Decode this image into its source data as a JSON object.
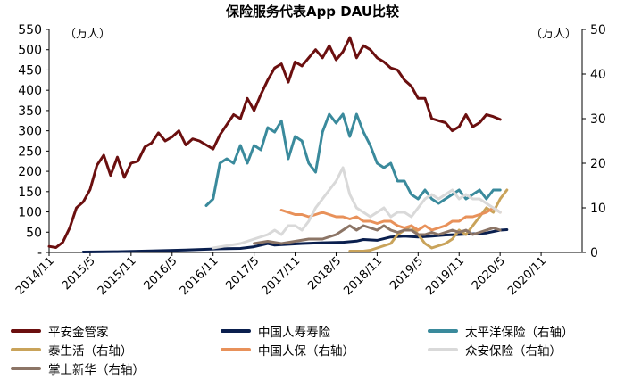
{
  "chart_data": {
    "type": "line",
    "title": "保险服务代表App DAU比较",
    "left_unit": "（万人）",
    "right_unit": "（万人）",
    "ylim_left": [
      0,
      550
    ],
    "ylim_right": [
      0,
      50
    ],
    "yticks_left": [
      "-",
      "50",
      "100",
      "150",
      "200",
      "250",
      "300",
      "350",
      "400",
      "450",
      "500",
      "550"
    ],
    "yticks_right": [
      "0",
      "10",
      "20",
      "30",
      "40",
      "50"
    ],
    "xlim": [
      0,
      78
    ],
    "x_ticks": [
      {
        "label": "2014/11",
        "m": 0
      },
      {
        "label": "2015/5",
        "m": 6
      },
      {
        "label": "2015/11",
        "m": 12
      },
      {
        "label": "2016/5",
        "m": 18
      },
      {
        "label": "2016/11",
        "m": 24
      },
      {
        "label": "2017/5",
        "m": 30
      },
      {
        "label": "2017/11",
        "m": 36
      },
      {
        "label": "2018/5",
        "m": 42
      },
      {
        "label": "2018/11",
        "m": 48
      },
      {
        "label": "2019/5",
        "m": 54
      },
      {
        "label": "2019/11",
        "m": 60
      },
      {
        "label": "2020/5",
        "m": 66
      },
      {
        "label": "2020/11",
        "m": 72
      }
    ],
    "series": [
      {
        "name": "平安金管家",
        "axis": "left",
        "color": "#6B0F0F",
        "points": [
          [
            0,
            15
          ],
          [
            1,
            12
          ],
          [
            2,
            25
          ],
          [
            3,
            60
          ],
          [
            4,
            110
          ],
          [
            5,
            125
          ],
          [
            6,
            155
          ],
          [
            7,
            215
          ],
          [
            8,
            240
          ],
          [
            9,
            190
          ],
          [
            10,
            235
          ],
          [
            11,
            185
          ],
          [
            12,
            220
          ],
          [
            13,
            225
          ],
          [
            14,
            260
          ],
          [
            15,
            270
          ],
          [
            16,
            295
          ],
          [
            17,
            275
          ],
          [
            18,
            285
          ],
          [
            19,
            300
          ],
          [
            20,
            265
          ],
          [
            21,
            280
          ],
          [
            22,
            275
          ],
          [
            23,
            265
          ],
          [
            24,
            255
          ],
          [
            25,
            290
          ],
          [
            26,
            315
          ],
          [
            27,
            340
          ],
          [
            28,
            330
          ],
          [
            29,
            380
          ],
          [
            30,
            350
          ],
          [
            31,
            390
          ],
          [
            32,
            425
          ],
          [
            33,
            455
          ],
          [
            34,
            465
          ],
          [
            35,
            420
          ],
          [
            36,
            470
          ],
          [
            37,
            460
          ],
          [
            38,
            480
          ],
          [
            39,
            500
          ],
          [
            40,
            480
          ],
          [
            41,
            510
          ],
          [
            42,
            475
          ],
          [
            43,
            495
          ],
          [
            44,
            530
          ],
          [
            45,
            480
          ],
          [
            46,
            510
          ],
          [
            47,
            500
          ],
          [
            48,
            480
          ],
          [
            49,
            470
          ],
          [
            50,
            455
          ],
          [
            51,
            450
          ],
          [
            52,
            425
          ],
          [
            53,
            410
          ],
          [
            54,
            380
          ],
          [
            55,
            380
          ],
          [
            56,
            330
          ],
          [
            57,
            325
          ],
          [
            58,
            320
          ],
          [
            59,
            300
          ],
          [
            60,
            310
          ],
          [
            61,
            340
          ],
          [
            62,
            310
          ],
          [
            63,
            320
          ],
          [
            64,
            340
          ],
          [
            65,
            335
          ],
          [
            66,
            328
          ]
        ]
      },
      {
        "name": "中国人寿寿险",
        "axis": "left",
        "color": "#0A1F4E",
        "points": [
          [
            5,
            1
          ],
          [
            10,
            2
          ],
          [
            15,
            4
          ],
          [
            20,
            6
          ],
          [
            25,
            9
          ],
          [
            28,
            10
          ],
          [
            30,
            14
          ],
          [
            32,
            22
          ],
          [
            33,
            18
          ],
          [
            35,
            20
          ],
          [
            37,
            22
          ],
          [
            40,
            24
          ],
          [
            43,
            25
          ],
          [
            45,
            28
          ],
          [
            46,
            32
          ],
          [
            48,
            30
          ],
          [
            50,
            38
          ],
          [
            52,
            40
          ],
          [
            54,
            38
          ],
          [
            56,
            40
          ],
          [
            58,
            43
          ],
          [
            60,
            44
          ],
          [
            62,
            46
          ],
          [
            64,
            48
          ],
          [
            66,
            55
          ],
          [
            67,
            56
          ]
        ]
      },
      {
        "name": "太平洋保险（右轴）",
        "axis": "right",
        "color": "#3A8A9C",
        "points": [
          [
            23,
            10.5
          ],
          [
            24,
            12
          ],
          [
            25,
            20
          ],
          [
            26,
            21
          ],
          [
            27,
            20
          ],
          [
            28,
            24
          ],
          [
            29,
            20
          ],
          [
            30,
            24
          ],
          [
            31,
            23
          ],
          [
            32,
            28
          ],
          [
            33,
            27
          ],
          [
            34,
            29.5
          ],
          [
            35,
            21
          ],
          [
            36,
            26
          ],
          [
            37,
            25
          ],
          [
            38,
            20
          ],
          [
            39,
            18
          ],
          [
            40,
            27
          ],
          [
            41,
            31
          ],
          [
            42,
            29
          ],
          [
            43,
            31
          ],
          [
            44,
            26
          ],
          [
            45,
            31
          ],
          [
            46,
            27
          ],
          [
            47,
            24
          ],
          [
            48,
            20
          ],
          [
            49,
            19
          ],
          [
            50,
            20
          ],
          [
            51,
            16
          ],
          [
            52,
            16
          ],
          [
            53,
            13
          ],
          [
            54,
            12
          ],
          [
            55,
            14
          ],
          [
            56,
            12
          ],
          [
            57,
            11
          ],
          [
            58,
            12
          ],
          [
            59,
            13
          ],
          [
            60,
            14
          ],
          [
            61,
            12
          ],
          [
            62,
            13
          ],
          [
            63,
            14
          ],
          [
            64,
            12
          ],
          [
            65,
            14
          ],
          [
            66,
            14
          ]
        ]
      },
      {
        "name": "泰生活（右轴）",
        "axis": "right",
        "color": "#C9A35A",
        "points": [
          [
            44,
            0.3
          ],
          [
            46,
            0.3
          ],
          [
            47,
            0.5
          ],
          [
            48,
            1
          ],
          [
            50,
            2
          ],
          [
            51,
            4
          ],
          [
            53,
            6
          ],
          [
            55,
            2
          ],
          [
            56,
            1
          ],
          [
            58,
            2
          ],
          [
            59,
            3
          ],
          [
            60,
            5
          ],
          [
            61,
            4
          ],
          [
            62,
            6
          ],
          [
            63,
            8
          ],
          [
            64,
            10
          ],
          [
            65,
            9
          ],
          [
            66,
            12
          ],
          [
            67,
            14
          ]
        ]
      },
      {
        "name": "中国人保（右轴）",
        "axis": "right",
        "color": "#E8915A",
        "points": [
          [
            34,
            9.5
          ],
          [
            35,
            9
          ],
          [
            36,
            8.5
          ],
          [
            37,
            8.5
          ],
          [
            38,
            8
          ],
          [
            39,
            8.5
          ],
          [
            40,
            9
          ],
          [
            41,
            8.5
          ],
          [
            42,
            8
          ],
          [
            43,
            8
          ],
          [
            44,
            7.5
          ],
          [
            45,
            8
          ],
          [
            46,
            7
          ],
          [
            47,
            7
          ],
          [
            48,
            6.5
          ],
          [
            49,
            7
          ],
          [
            50,
            7
          ],
          [
            51,
            6
          ],
          [
            52,
            5.5
          ],
          [
            53,
            6
          ],
          [
            54,
            5
          ],
          [
            55,
            6
          ],
          [
            56,
            5
          ],
          [
            57,
            5.5
          ],
          [
            58,
            6
          ],
          [
            59,
            7
          ],
          [
            60,
            7
          ],
          [
            61,
            8
          ],
          [
            62,
            8
          ],
          [
            63,
            8.5
          ],
          [
            64,
            9
          ],
          [
            65,
            10
          ],
          [
            66,
            9
          ]
        ]
      },
      {
        "name": "众安保险（右轴）",
        "axis": "right",
        "color": "#D9D9D9",
        "points": [
          [
            24,
            1
          ],
          [
            26,
            1.5
          ],
          [
            28,
            2
          ],
          [
            30,
            3
          ],
          [
            32,
            4
          ],
          [
            33,
            5
          ],
          [
            34,
            4
          ],
          [
            35,
            6
          ],
          [
            36,
            6
          ],
          [
            37,
            5
          ],
          [
            38,
            7
          ],
          [
            39,
            10
          ],
          [
            40,
            12
          ],
          [
            41,
            14
          ],
          [
            42,
            16
          ],
          [
            43,
            19
          ],
          [
            44,
            13
          ],
          [
            45,
            10
          ],
          [
            46,
            9
          ],
          [
            47,
            8
          ],
          [
            48,
            9
          ],
          [
            49,
            10
          ],
          [
            50,
            8
          ],
          [
            51,
            9
          ],
          [
            52,
            9
          ],
          [
            53,
            8
          ],
          [
            54,
            10
          ],
          [
            55,
            12
          ],
          [
            56,
            13
          ],
          [
            57,
            12
          ],
          [
            58,
            13
          ],
          [
            59,
            14
          ],
          [
            60,
            12
          ],
          [
            61,
            13
          ],
          [
            62,
            12
          ],
          [
            63,
            12
          ],
          [
            64,
            11
          ],
          [
            65,
            10
          ],
          [
            66,
            9
          ]
        ]
      },
      {
        "name": "掌上新华（右轴）",
        "axis": "right",
        "color": "#8C7566",
        "points": [
          [
            30,
            2
          ],
          [
            32,
            2.5
          ],
          [
            34,
            2
          ],
          [
            36,
            2.5
          ],
          [
            38,
            3
          ],
          [
            40,
            3
          ],
          [
            42,
            4
          ],
          [
            43,
            5
          ],
          [
            44,
            6
          ],
          [
            45,
            5
          ],
          [
            46,
            6
          ],
          [
            47,
            5.5
          ],
          [
            48,
            5
          ],
          [
            49,
            6
          ],
          [
            50,
            5
          ],
          [
            51,
            4.5
          ],
          [
            52,
            5
          ],
          [
            53,
            5
          ],
          [
            54,
            4
          ],
          [
            55,
            4
          ],
          [
            56,
            4.5
          ],
          [
            57,
            4
          ],
          [
            58,
            4.5
          ],
          [
            59,
            5
          ],
          [
            60,
            4.5
          ],
          [
            61,
            5
          ],
          [
            62,
            4
          ],
          [
            63,
            4.5
          ],
          [
            64,
            5
          ],
          [
            65,
            5.5
          ],
          [
            66,
            5
          ]
        ]
      }
    ]
  }
}
